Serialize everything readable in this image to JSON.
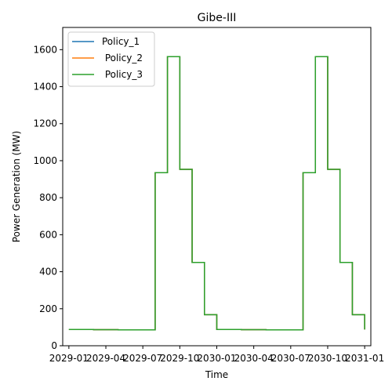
{
  "chart_data": {
    "type": "line",
    "title": "Gibe-III",
    "xlabel": "Time",
    "ylabel": "Power Generation (MW)",
    "ylim": [
      0,
      1720
    ],
    "yticks": [
      0,
      200,
      400,
      600,
      800,
      1000,
      1200,
      1400,
      1600
    ],
    "xlim": [
      -0.5,
      24.5
    ],
    "xticks": [
      {
        "label": "2029-01",
        "month": 0
      },
      {
        "label": "2029-04",
        "month": 3
      },
      {
        "label": "2029-07",
        "month": 6
      },
      {
        "label": "2029-10",
        "month": 9
      },
      {
        "label": "2030-01",
        "month": 12
      },
      {
        "label": "2030-04",
        "month": 15
      },
      {
        "label": "2030-07",
        "month": 18
      },
      {
        "label": "2030-10",
        "month": 21
      },
      {
        "label": "2031-01",
        "month": 24
      }
    ],
    "x_months": [
      0,
      1,
      2,
      3,
      4,
      5,
      6,
      7,
      8,
      9,
      10,
      11,
      12,
      13,
      14,
      15,
      16,
      17,
      18,
      19,
      20,
      21,
      22,
      23,
      24
    ],
    "series": [
      {
        "name": "Policy_1",
        "color": "#1f77b4",
        "values": [
          88,
          88,
          87,
          87,
          86,
          86,
          86,
          935,
          1562,
          953,
          450,
          168,
          88,
          88,
          87,
          87,
          86,
          86,
          86,
          935,
          1562,
          953,
          450,
          168,
          88
        ]
      },
      {
        "name": " Policy_2",
        "color": "#ff7f0e",
        "values": [
          88,
          88,
          87,
          87,
          86,
          86,
          86,
          935,
          1562,
          953,
          450,
          168,
          88,
          88,
          87,
          87,
          86,
          86,
          86,
          935,
          1562,
          953,
          450,
          168,
          88
        ]
      },
      {
        "name": " Policy_3",
        "color": "#2ca02c",
        "values": [
          88,
          88,
          87,
          87,
          86,
          86,
          86,
          935,
          1562,
          953,
          450,
          168,
          88,
          88,
          87,
          87,
          86,
          86,
          86,
          935,
          1562,
          953,
          450,
          168,
          88
        ]
      }
    ],
    "legend_position": "top-left",
    "grid": false
  }
}
